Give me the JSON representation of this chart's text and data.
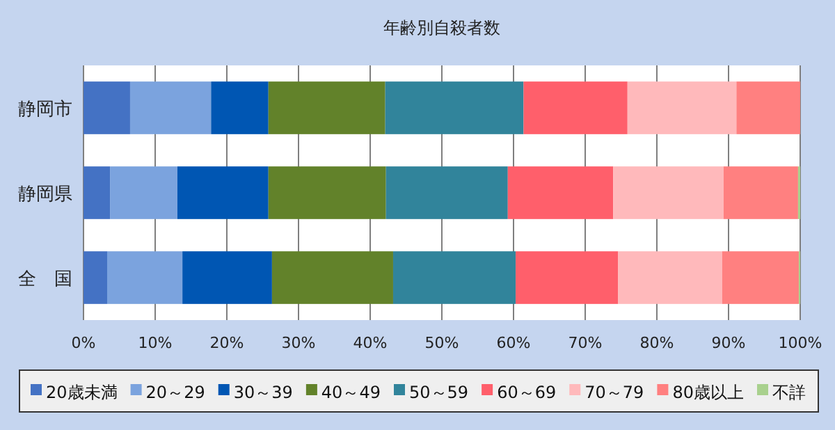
{
  "chart_data": {
    "type": "bar",
    "orientation": "horizontal",
    "stacked": true,
    "title": "年齢別自殺者数",
    "categories": [
      "静岡市",
      "静岡県",
      "全　国"
    ],
    "series": [
      {
        "name": "20歳未満",
        "color": "#4472c4",
        "values": [
          6.5,
          3.7,
          3.3
        ]
      },
      {
        "name": "20～29",
        "color": "#7ba3de",
        "values": [
          11.3,
          9.4,
          10.5
        ]
      },
      {
        "name": "30～39",
        "color": "#0056b3",
        "values": [
          8.0,
          12.7,
          12.5
        ]
      },
      {
        "name": "40～49",
        "color": "#62822a",
        "values": [
          16.3,
          16.4,
          16.9
        ]
      },
      {
        "name": "50～59",
        "color": "#31849b",
        "values": [
          19.3,
          17.0,
          17.1
        ]
      },
      {
        "name": "60～69",
        "color": "#ff5f6b",
        "values": [
          14.5,
          14.7,
          14.3
        ]
      },
      {
        "name": "70～79",
        "color": "#ffb9bb",
        "values": [
          15.2,
          15.4,
          14.5
        ]
      },
      {
        "name": "80歳以上",
        "color": "#ff8080",
        "values": [
          8.9,
          10.4,
          10.7
        ]
      },
      {
        "name": "不詳",
        "color": "#a9d18e",
        "values": [
          0,
          0.3,
          0.2
        ]
      }
    ],
    "xlim": [
      0,
      100
    ],
    "xticks": [
      {
        "value": 0,
        "label": "0%"
      },
      {
        "value": 10,
        "label": "10%"
      },
      {
        "value": 20,
        "label": "20%"
      },
      {
        "value": 30,
        "label": "30%"
      },
      {
        "value": 40,
        "label": "40%"
      },
      {
        "value": 50,
        "label": "50%"
      },
      {
        "value": 60,
        "label": "60%"
      },
      {
        "value": 70,
        "label": "70%"
      },
      {
        "value": 80,
        "label": "80%"
      },
      {
        "value": 90,
        "label": "90%"
      },
      {
        "value": 100,
        "label": "100%"
      }
    ],
    "grid": "x",
    "legend": "bottom"
  }
}
